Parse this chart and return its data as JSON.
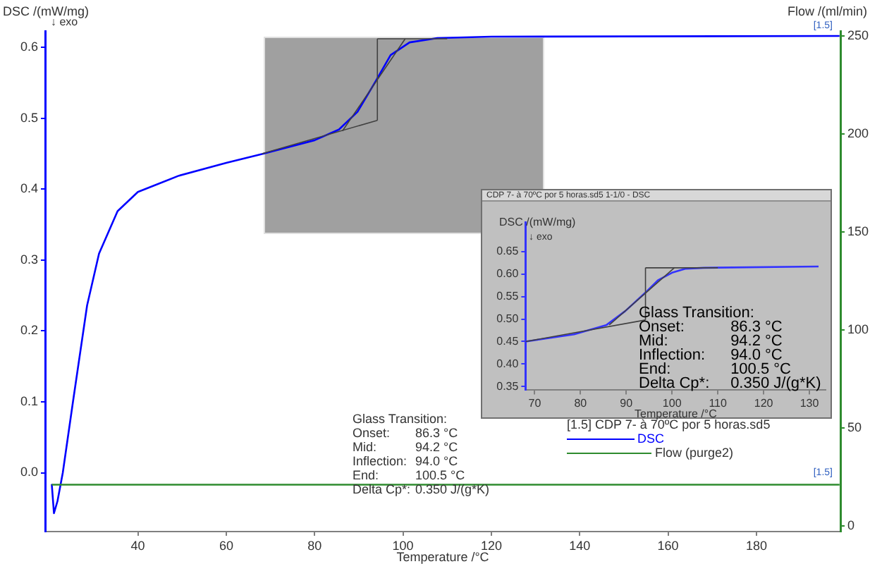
{
  "chart_data": [
    {
      "type": "line",
      "xlabel": "Temperature /°C",
      "ylabel": "DSC /(mW/mg)",
      "y2label": "Flow /(ml/min)",
      "legend_title": "[1.5] CDP 7- à 70ºC por 5 horas.sd5",
      "legend": "bottom right",
      "grid": false,
      "marker": "none",
      "line_style": "solid",
      "xlim": [
        19,
        199
      ],
      "xticks": [
        40,
        60,
        80,
        100,
        120,
        140,
        160,
        180
      ],
      "ylim": [
        -0.083,
        0.623
      ],
      "yticks": [
        {
          "value": 0,
          "label": "0.0"
        },
        0.1,
        0.2,
        0.3,
        0.4,
        0.5,
        0.6
      ],
      "y2lim": [
        -2.9,
        252.4
      ],
      "y2ticks": [
        0,
        50,
        100,
        150,
        200,
        250
      ],
      "series": [
        {
          "name": "DSC",
          "color": "#0000ff",
          "x": [
            20.5,
            21,
            21.8,
            23,
            25.3,
            28.5,
            31.2,
            35.4,
            40,
            49.3,
            60,
            68.4,
            80,
            85.5,
            89.7,
            93.8,
            97.2,
            101.5,
            107.8,
            120,
            198.8
          ],
          "values": [
            -0.016,
            -0.057,
            -0.04,
            0,
            0.1,
            0.236,
            0.309,
            0.369,
            0.396,
            0.419,
            0.437,
            0.45,
            0.469,
            0.484,
            0.509,
            0.552,
            0.589,
            0.607,
            0.613,
            0.615,
            0.616
          ]
        },
        {
          "name": "Flow (purge2)",
          "color": "#2e8b2e",
          "axis": "y2",
          "x": [
            20.5,
            198.8
          ],
          "values": [
            21,
            21
          ]
        },
        {
          "type": "line",
          "color": "#404040",
          "x": [
            68.1,
            94.2
          ],
          "values": [
            0.45,
            0.497
          ]
        },
        {
          "type": "line",
          "color": "#404040",
          "x": [
            86.3,
            100.5
          ],
          "values": [
            0.482,
            0.612
          ]
        },
        {
          "type": "line",
          "color": "#404040",
          "x": [
            94.2,
            110
          ],
          "values": [
            0.612,
            0.612
          ]
        },
        {
          "type": "line",
          "color": "#404040",
          "x": [
            94.2,
            94.2
          ],
          "values": [
            0.497,
            0.612
          ]
        }
      ],
      "annotations": [
        "↓ exo",
        "Glass Transition:",
        "Onset:\t86.3 °C",
        "Mid:\t94.2 °C",
        "Inflection:\t94.0 °C",
        "End:\t100.5 °C",
        "Delta Cp*:\t0.350 J/(g*K)",
        {
          "text": "[1.5]",
          "x": 198,
          "y": 0.616
        },
        {
          "text": "[1.5]",
          "x": 198,
          "y": -0.016
        }
      ]
    },
    {
      "type": "line",
      "title": "CDP 7- à 70ºC por 5 horas.sd5 1-1/0 - DSC",
      "xlabel": "Temperature /°C",
      "ylabel": "DSC /(mW/mg)",
      "grid": false,
      "marker": "none",
      "line_style": "solid",
      "xlim": [
        68,
        133.6
      ],
      "xticks": [
        70,
        80,
        90,
        100,
        110,
        120,
        130
      ],
      "ylim": [
        0.342,
        0.715
      ],
      "yticks": [
        0.35,
        {
          "value": 0.4,
          "label": "0.40"
        },
        0.45,
        {
          "value": 0.5,
          "label": "0.50"
        },
        0.55,
        {
          "value": 0.6,
          "label": "0.60"
        },
        0.65
      ],
      "series": [
        {
          "color": "#3333ff",
          "x": [
            68,
            78.6,
            85.7,
            89.8,
            94.1,
            96.9,
            100,
            103,
            107,
            132
          ],
          "values": [
            0.45,
            0.466,
            0.487,
            0.518,
            0.558,
            0.586,
            0.603,
            0.612,
            0.614,
            0.617
          ]
        },
        {
          "type": "line",
          "color": "#404040",
          "x": [
            68,
            94.2
          ],
          "values": [
            0.45,
            0.498
          ]
        },
        {
          "type": "line",
          "color": "#404040",
          "x": [
            86.3,
            100.5
          ],
          "values": [
            0.487,
            0.614
          ]
        },
        {
          "type": "line",
          "color": "#404040",
          "x": [
            94.2,
            110
          ],
          "values": [
            0.614,
            0.614
          ]
        },
        {
          "type": "line",
          "color": "#404040",
          "x": [
            94.2,
            94.2
          ],
          "values": [
            0.498,
            0.614
          ]
        }
      ],
      "annotations": [
        "↓ exo",
        "Glass Transition:",
        "Onset:\t86.3 °C",
        "Mid:\t94.2 °C",
        "Inflection:\t94.0 °C",
        "End:\t100.5 °C",
        "Delta Cp*:\t0.350 J/(g*K)"
      ]
    }
  ]
}
